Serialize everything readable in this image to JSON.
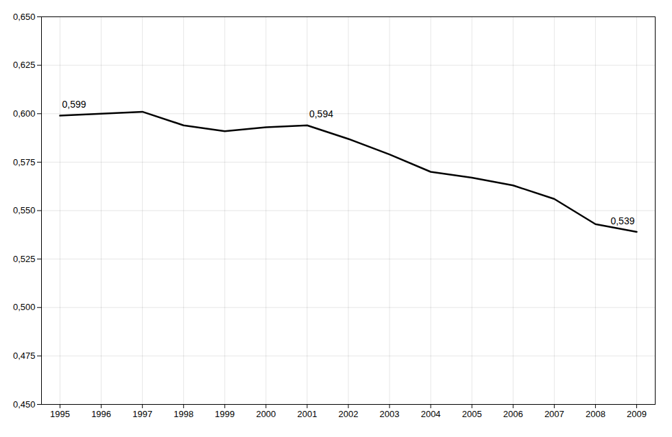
{
  "chart_data": {
    "type": "line",
    "x": [
      1995,
      1996,
      1997,
      1998,
      1999,
      2000,
      2001,
      2002,
      2003,
      2004,
      2005,
      2006,
      2007,
      2008,
      2009
    ],
    "values": [
      0.599,
      0.6,
      0.601,
      0.594,
      0.591,
      0.593,
      0.594,
      0.587,
      0.579,
      0.57,
      0.567,
      0.563,
      0.556,
      0.543,
      0.539
    ],
    "xlim": [
      1994.55,
      2009.45
    ],
    "xticks": [
      1995,
      1996,
      1997,
      1998,
      1999,
      2000,
      2001,
      2002,
      2003,
      2004,
      2005,
      2006,
      2007,
      2008,
      2009
    ],
    "ylim": [
      0.45,
      0.65
    ],
    "yticks": [
      {
        "value": 0.45,
        "label": "0,450"
      },
      {
        "value": 0.475,
        "label": "0,475"
      },
      {
        "value": 0.5,
        "label": "0,500"
      },
      {
        "value": 0.525,
        "label": "0,525"
      },
      {
        "value": 0.55,
        "label": "0,550"
      },
      {
        "value": 0.575,
        "label": "0,575"
      },
      {
        "value": 0.6,
        "label": "0,600"
      },
      {
        "value": 0.625,
        "label": "0,625"
      },
      {
        "value": 0.65,
        "label": "0,650"
      }
    ],
    "grid": true,
    "annotations": [
      {
        "x": 1995,
        "y": 0.599,
        "text": "0,599"
      },
      {
        "x": 2001,
        "y": 0.594,
        "text": "0,594"
      },
      {
        "x": 2009,
        "y": 0.539,
        "text": "0,539"
      }
    ]
  }
}
